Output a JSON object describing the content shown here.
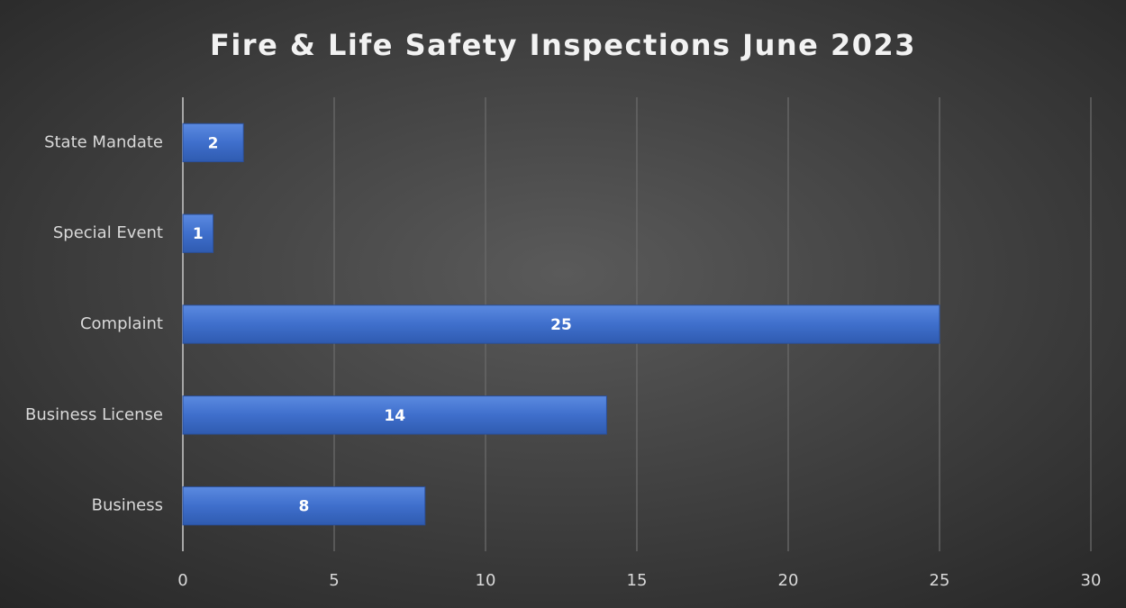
{
  "chart_data": {
    "type": "bar",
    "orientation": "horizontal",
    "title": "Fire & Life Safety Inspections June 2023",
    "categories": [
      "Business",
      "Business License",
      "Complaint",
      "Special Event",
      "State Mandate"
    ],
    "values": [
      8,
      14,
      25,
      1,
      2
    ],
    "color": "#4472c4",
    "xlim": [
      0,
      30
    ],
    "xticks": [
      0,
      5,
      10,
      15,
      20,
      25,
      30
    ],
    "grid": true
  }
}
